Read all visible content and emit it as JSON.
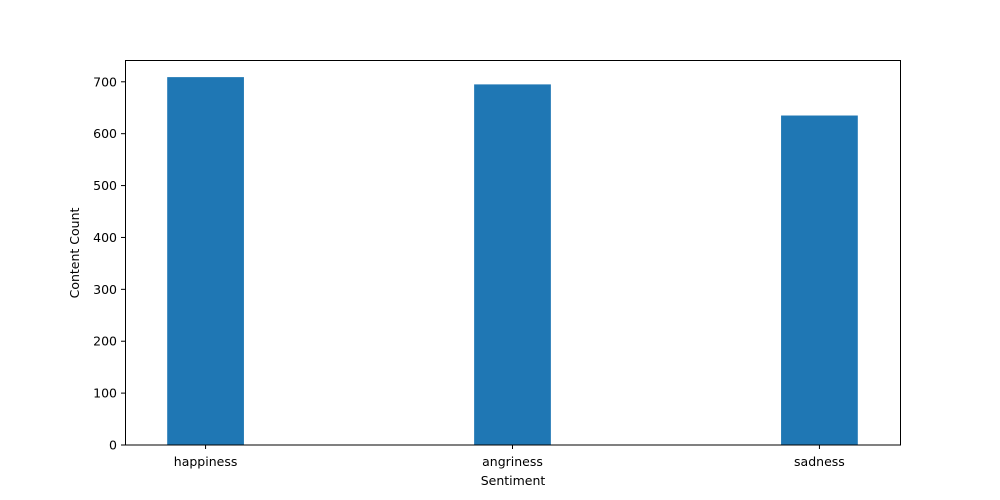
{
  "chart_data": {
    "type": "bar",
    "title": "",
    "xlabel": "Sentiment",
    "ylabel": "Content Count",
    "categories": [
      "happiness",
      "angriness",
      "sadness"
    ],
    "values": [
      709,
      695,
      635
    ],
    "ylim": [
      0,
      742
    ],
    "yticks": [
      0,
      100,
      200,
      300,
      400,
      500,
      600,
      700
    ],
    "bar_color": "#1f77b4",
    "grid": false,
    "legend": "none"
  }
}
